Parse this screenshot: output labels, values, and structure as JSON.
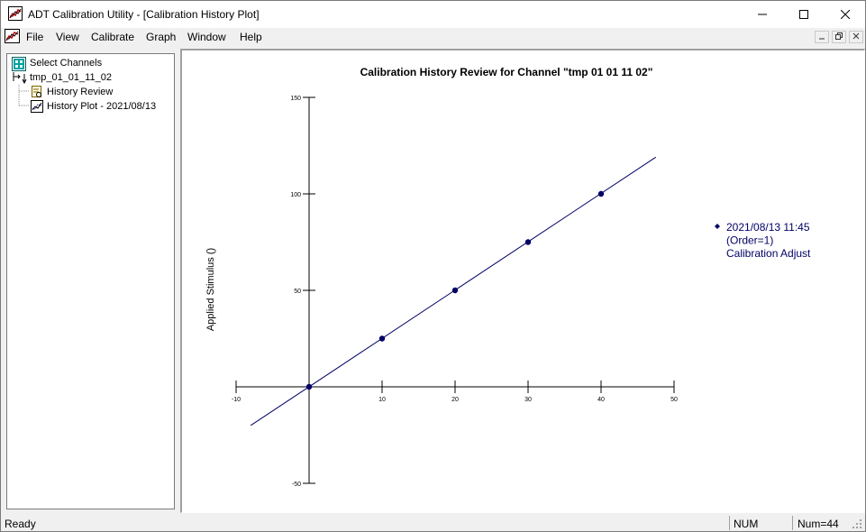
{
  "window": {
    "title": "ADT Calibration Utility - [Calibration History Plot]"
  },
  "menu": {
    "items": [
      "File",
      "View",
      "Calibrate",
      "Graph",
      "Window",
      "Help"
    ]
  },
  "tree": {
    "root_label": "Select Channels",
    "channel_label": "tmp_01_01_11_02",
    "history_review_label": "History Review",
    "history_plot_label": "History Plot - 2021/08/13"
  },
  "plot": {
    "title": "Calibration History Review for Channel \"tmp 01 01 11 02\"",
    "ylabel": "Applied Stimulus ()",
    "legend": {
      "line1": "2021/08/13 11:45",
      "line2": "(Order=1)",
      "line3": "Calibration Adjust"
    }
  },
  "chart_data": {
    "type": "scatter",
    "title": "Calibration History Review for Channel \"tmp 01 01 11 02\"",
    "xlabel": "",
    "ylabel": "Applied Stimulus ()",
    "x_ticks": [
      "-10",
      "10",
      "20",
      "30",
      "40",
      "50"
    ],
    "y_ticks": [
      "150",
      "100",
      "50",
      "-50"
    ],
    "xlim": [
      -10,
      50
    ],
    "ylim": [
      -50,
      150
    ],
    "series": [
      {
        "name": "2021/08/13 11:45 (Order=1) Calibration Adjust",
        "points": [
          [
            0,
            0
          ],
          [
            10,
            25
          ],
          [
            20,
            50
          ],
          [
            30,
            75
          ],
          [
            40,
            100
          ]
        ],
        "fit_line": [
          [
            -8,
            -20
          ],
          [
            47.5,
            119
          ]
        ]
      }
    ],
    "colors": {
      "series": "#000066"
    }
  },
  "status": {
    "ready": "Ready",
    "num": "NUM",
    "num_count": "Num=44"
  }
}
